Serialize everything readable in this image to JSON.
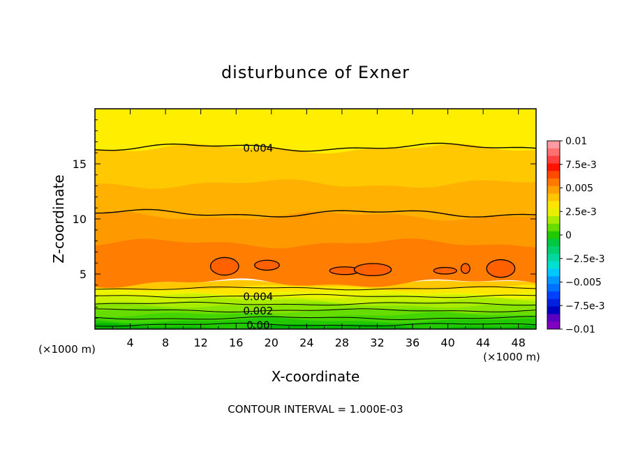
{
  "chart_data": {
    "type": "heatmap",
    "title": "disturbunce of Exner",
    "xlabel": "X-coordinate",
    "ylabel": "Z-coordinate",
    "x_unit_left": "(×1000 m)",
    "x_unit_right": "(×1000 m)",
    "footer": "CONTOUR INTERVAL = 1.000E-03",
    "xlim": [
      0,
      50
    ],
    "ylim": [
      0,
      20
    ],
    "x_ticks": [
      4,
      8,
      12,
      16,
      20,
      24,
      28,
      32,
      36,
      40,
      44,
      48
    ],
    "x_tick_labels": [
      "4",
      "8",
      "12",
      "16",
      "20",
      "24",
      "28",
      "32",
      "36",
      "40",
      "44",
      "48"
    ],
    "y_ticks": [
      5,
      10,
      15
    ],
    "y_tick_labels": [
      "5",
      "10",
      "15"
    ],
    "contour_interval": 0.001,
    "bands": [
      {
        "z0": 0.0,
        "z1": 0.3,
        "value": -0.0002,
        "color": "#00b400"
      },
      {
        "z0": 0.3,
        "z1": 0.8,
        "value": 0.0005,
        "color": "#22c800"
      },
      {
        "z0": 0.8,
        "z1": 1.3,
        "value": 0.001,
        "color": "#44d400"
      },
      {
        "z0": 1.3,
        "z1": 1.7,
        "value": 0.0015,
        "color": "#66dc00"
      },
      {
        "z0": 1.7,
        "z1": 2.2,
        "value": 0.002,
        "color": "#88e400"
      },
      {
        "z0": 2.2,
        "z1": 2.6,
        "value": 0.0025,
        "color": "#aaec00"
      },
      {
        "z0": 2.6,
        "z1": 3.0,
        "value": 0.003,
        "color": "#ccf200"
      },
      {
        "z0": 3.0,
        "z1": 3.4,
        "value": 0.0035,
        "color": "#eef400"
      },
      {
        "z0": 3.4,
        "z1": 3.8,
        "value": 0.004,
        "color": "#ffe600"
      },
      {
        "z0": 3.8,
        "z1": 4.2,
        "value": 0.0045,
        "color": "#ffc800"
      },
      {
        "z0": 4.2,
        "z1": 7.8,
        "value": 0.0055,
        "color": "#ff7d00"
      },
      {
        "z0": 7.8,
        "z1": 10.3,
        "value": 0.005,
        "color": "#ff9900"
      },
      {
        "z0": 10.3,
        "z1": 13.2,
        "value": 0.0045,
        "color": "#ffb000"
      },
      {
        "z0": 13.2,
        "z1": 16.4,
        "value": 0.0042,
        "color": "#ffc800"
      },
      {
        "z0": 16.4,
        "z1": 20.0,
        "value": 0.0038,
        "color": "#ffee00"
      }
    ],
    "contours": [
      {
        "level": 0.004,
        "z_mean": 16.5,
        "label": "0.004",
        "label_x": 18.5
      },
      {
        "level": 0.0045,
        "z_mean": 10.5,
        "label": "",
        "label_x": null
      },
      {
        "level": 0.004,
        "z_mean": 3.0,
        "label": "0.004",
        "label_x": 18.5
      },
      {
        "level": 0.0035,
        "z_mean": 3.7,
        "label": "",
        "label_x": null
      },
      {
        "level": 0.003,
        "z_mean": 2.3,
        "label": "",
        "label_x": null
      },
      {
        "level": 0.002,
        "z_mean": 1.7,
        "label": "0.002",
        "label_x": 18.5
      },
      {
        "level": 0.001,
        "z_mean": 1.0,
        "label": "",
        "label_x": null
      },
      {
        "level": 0.0,
        "z_mean": 0.4,
        "label": "0.00",
        "label_x": 18.5
      }
    ],
    "closed_cells": [
      {
        "cx": 14.7,
        "cz": 5.7,
        "rx": 1.6,
        "rz": 0.8,
        "level": 0.006
      },
      {
        "cx": 19.5,
        "cz": 5.8,
        "rx": 1.4,
        "rz": 0.45,
        "level": 0.006
      },
      {
        "cx": 28.3,
        "cz": 5.3,
        "rx": 1.7,
        "rz": 0.35,
        "level": 0.006
      },
      {
        "cx": 31.5,
        "cz": 5.4,
        "rx": 2.1,
        "rz": 0.55,
        "level": 0.006
      },
      {
        "cx": 39.7,
        "cz": 5.3,
        "rx": 1.3,
        "rz": 0.3,
        "level": 0.006
      },
      {
        "cx": 42.0,
        "cz": 5.5,
        "rx": 0.5,
        "rz": 0.45,
        "level": 0.006
      },
      {
        "cx": 46.0,
        "cz": 5.5,
        "rx": 1.6,
        "rz": 0.8,
        "level": 0.006
      }
    ],
    "colorbar": {
      "labels": [
        "0.01",
        "7.5e-3",
        "0.005",
        "2.5e-3",
        "0",
        "−2.5e-3",
        "−0.005",
        "−7.5e-3",
        "−0.01"
      ],
      "values": [
        0.01,
        0.0075,
        0.005,
        0.0025,
        0,
        -0.0025,
        -0.005,
        -0.0075,
        -0.01
      ],
      "colors_top_to_bottom": [
        "#ff9aa0",
        "#ff7070",
        "#ff4040",
        "#ff1400",
        "#ff4a00",
        "#ff7800",
        "#ffa000",
        "#ffc400",
        "#ffe600",
        "#e8f000",
        "#aaec00",
        "#66dc00",
        "#22c800",
        "#00c840",
        "#00d070",
        "#00d8a0",
        "#00e0d0",
        "#00c8ff",
        "#0098ff",
        "#0070ff",
        "#0040ff",
        "#0020e0",
        "#0000c0",
        "#5a00c0",
        "#8000c0"
      ]
    }
  }
}
